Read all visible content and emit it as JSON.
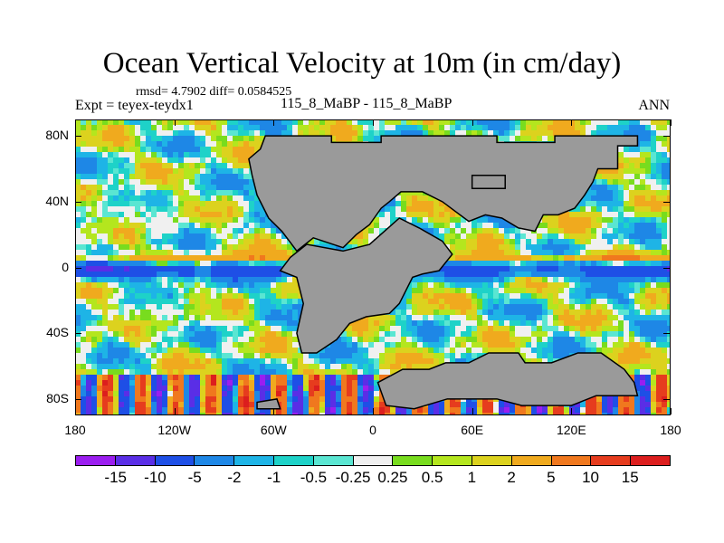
{
  "title": "Ocean Vertical Velocity at 10m (in cm/day)",
  "stats": "rmsd= 4.7902 diff= 0.0584525",
  "experiment": "Expt = teyex-teydx1",
  "period": "115_8_MaBP - 115_8_MaBP",
  "season": "ANN",
  "colors": {
    "land": "#9a9a9a",
    "near_zero": "#f0f0f0",
    "coast": "#000000"
  },
  "y_axis": {
    "labels": [
      "80N",
      "40N",
      "0",
      "40S",
      "80S"
    ],
    "values": [
      80,
      40,
      0,
      -40,
      -80
    ]
  },
  "x_axis": {
    "labels": [
      "180",
      "120W",
      "60W",
      "0",
      "60E",
      "120E",
      "180"
    ],
    "values": [
      -180,
      -120,
      -60,
      0,
      60,
      120,
      180
    ]
  },
  "colorbar": {
    "labels": [
      "-15",
      "-10",
      "-5",
      "-2",
      "-1",
      "-0.5",
      "-0.25",
      "0.25",
      "0.5",
      "1",
      "2",
      "5",
      "10",
      "15"
    ],
    "colors": [
      "#9b1ef0",
      "#5a2ee6",
      "#1e4fe6",
      "#1e87e6",
      "#1eb4e6",
      "#1ed2c8",
      "#5ae6d2",
      "#f0f0f0",
      "#78dc1e",
      "#b4e61e",
      "#dcd21e",
      "#f0aa1e",
      "#f0781e",
      "#e63c1e",
      "#dc1e1e"
    ]
  }
}
